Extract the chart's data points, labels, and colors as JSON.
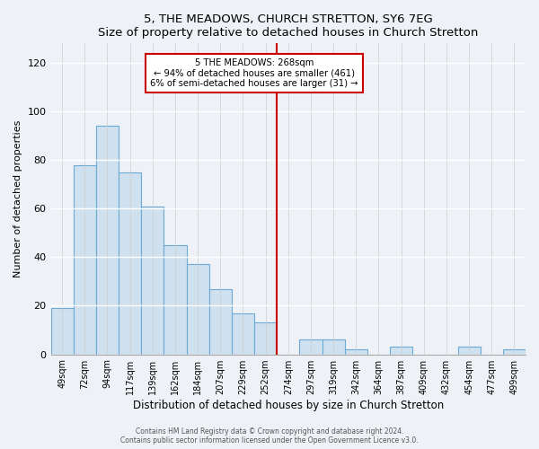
{
  "title": "5, THE MEADOWS, CHURCH STRETTON, SY6 7EG",
  "subtitle": "Size of property relative to detached houses in Church Stretton",
  "xlabel": "Distribution of detached houses by size in Church Stretton",
  "ylabel": "Number of detached properties",
  "bar_color": "#cfe0ef",
  "bar_edge_color": "#6aaad4",
  "background_color": "#eef2f7",
  "bins": [
    "49sqm",
    "72sqm",
    "94sqm",
    "117sqm",
    "139sqm",
    "162sqm",
    "184sqm",
    "207sqm",
    "229sqm",
    "252sqm",
    "274sqm",
    "297sqm",
    "319sqm",
    "342sqm",
    "364sqm",
    "387sqm",
    "409sqm",
    "432sqm",
    "454sqm",
    "477sqm",
    "499sqm"
  ],
  "values": [
    19,
    78,
    94,
    75,
    61,
    45,
    37,
    27,
    17,
    13,
    0,
    6,
    6,
    2,
    0,
    3,
    0,
    0,
    3,
    0,
    2
  ],
  "vline_x": 10,
  "vline_color": "#cc0000",
  "annotation_title": "5 THE MEADOWS: 268sqm",
  "annotation_line1": "← 94% of detached houses are smaller (461)",
  "annotation_line2": "6% of semi-detached houses are larger (31) →",
  "ylim": [
    0,
    128
  ],
  "yticks": [
    0,
    20,
    40,
    60,
    80,
    100,
    120
  ],
  "footer1": "Contains HM Land Registry data © Crown copyright and database right 2024.",
  "footer2": "Contains public sector information licensed under the Open Government Licence v3.0."
}
